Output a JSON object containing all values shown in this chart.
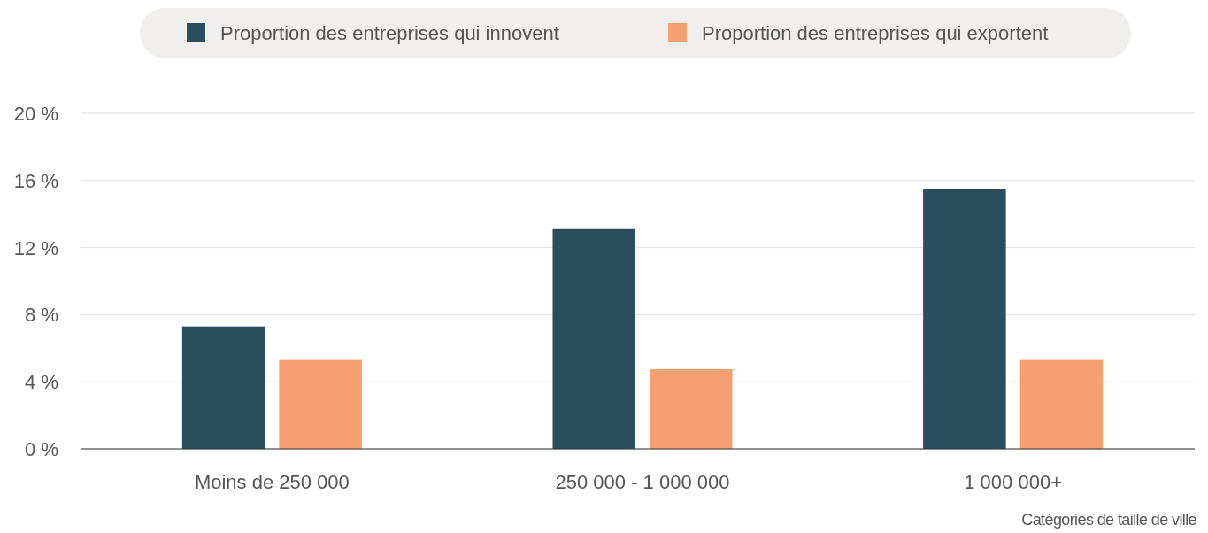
{
  "chart_data": {
    "type": "bar",
    "categories": [
      "Moins de 250 000",
      "250 000 - 1 000 000",
      "1 000 000+"
    ],
    "series": [
      {
        "name": "Proportion des entreprises qui innovent",
        "color": "#2b4e5e",
        "values": [
          7.3,
          13.1,
          15.5
        ]
      },
      {
        "name": "Proportion des entreprises qui exportent",
        "color": "#f4a070",
        "values": [
          5.3,
          4.75,
          5.3
        ]
      }
    ],
    "ylim": [
      0,
      20
    ],
    "yticks": [
      {
        "value": 0,
        "label": "0 %"
      },
      {
        "value": 4,
        "label": "4 %"
      },
      {
        "value": 8,
        "label": "8 %"
      },
      {
        "value": 12,
        "label": "12 %"
      },
      {
        "value": 16,
        "label": "16 %"
      },
      {
        "value": 20,
        "label": "20 %"
      }
    ],
    "xlabel": "Catégories de taille de ville",
    "grid": "y",
    "legend": "top"
  }
}
